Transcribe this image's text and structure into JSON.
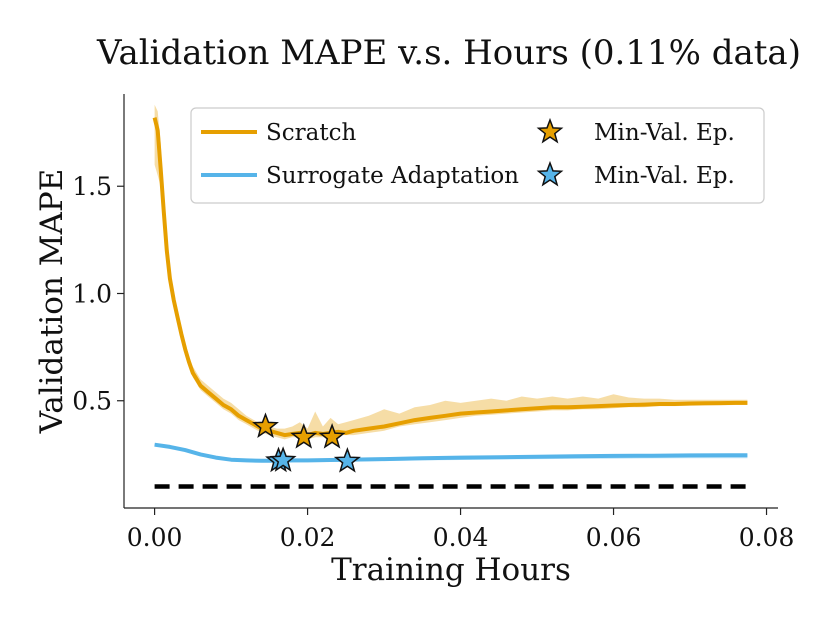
{
  "chart_data": {
    "type": "line",
    "title": "Validation MAPE v.s. Hours (0.11% data)",
    "xlabel": "Training Hours",
    "ylabel": "Validation MAPE",
    "xlim": [
      -0.004,
      0.0815
    ],
    "ylim": [
      0.0,
      1.93
    ],
    "xticks": [
      0.0,
      0.02,
      0.04,
      0.06,
      0.08
    ],
    "xtick_labels": [
      "0.00",
      "0.02",
      "0.04",
      "0.06",
      "0.08"
    ],
    "yticks": [
      0.5,
      1.0,
      1.5
    ],
    "ytick_labels": [
      "0.5",
      "1.0",
      "1.5"
    ],
    "colors": {
      "scratch": "#E69F00",
      "surrogate": "#56B4E9",
      "baseline": "#000000"
    },
    "series": [
      {
        "name": "Scratch",
        "color": "#E69F00",
        "x": [
          0.0,
          0.0004,
          0.0008,
          0.0012,
          0.0016,
          0.002,
          0.0025,
          0.003,
          0.0035,
          0.004,
          0.0045,
          0.005,
          0.0055,
          0.006,
          0.007,
          0.008,
          0.009,
          0.01,
          0.011,
          0.012,
          0.013,
          0.014,
          0.015,
          0.016,
          0.017,
          0.018,
          0.019,
          0.02,
          0.021,
          0.022,
          0.023,
          0.024,
          0.025,
          0.026,
          0.028,
          0.03,
          0.032,
          0.034,
          0.036,
          0.038,
          0.04,
          0.042,
          0.044,
          0.046,
          0.048,
          0.05,
          0.052,
          0.054,
          0.056,
          0.058,
          0.06,
          0.062,
          0.064,
          0.066,
          0.068,
          0.07,
          0.072,
          0.074,
          0.076,
          0.0775
        ],
        "y": [
          1.82,
          1.76,
          1.58,
          1.38,
          1.2,
          1.07,
          0.97,
          0.89,
          0.81,
          0.74,
          0.68,
          0.63,
          0.6,
          0.57,
          0.54,
          0.51,
          0.48,
          0.46,
          0.43,
          0.41,
          0.39,
          0.37,
          0.36,
          0.35,
          0.34,
          0.345,
          0.35,
          0.34,
          0.35,
          0.345,
          0.35,
          0.355,
          0.35,
          0.36,
          0.37,
          0.38,
          0.395,
          0.41,
          0.42,
          0.43,
          0.44,
          0.445,
          0.45,
          0.455,
          0.46,
          0.465,
          0.47,
          0.47,
          0.472,
          0.475,
          0.478,
          0.48,
          0.482,
          0.485,
          0.485,
          0.487,
          0.488,
          0.489,
          0.49,
          0.49
        ],
        "y_lower": [
          1.6,
          1.55,
          1.5,
          1.33,
          1.17,
          1.04,
          0.95,
          0.87,
          0.79,
          0.72,
          0.66,
          0.61,
          0.58,
          0.55,
          0.52,
          0.49,
          0.46,
          0.44,
          0.41,
          0.39,
          0.37,
          0.35,
          0.34,
          0.33,
          0.32,
          0.33,
          0.33,
          0.32,
          0.33,
          0.33,
          0.33,
          0.34,
          0.34,
          0.34,
          0.35,
          0.36,
          0.38,
          0.39,
          0.4,
          0.41,
          0.42,
          0.43,
          0.435,
          0.44,
          0.445,
          0.45,
          0.455,
          0.455,
          0.46,
          0.46,
          0.465,
          0.47,
          0.47,
          0.475,
          0.475,
          0.477,
          0.478,
          0.479,
          0.48,
          0.48
        ],
        "y_upper": [
          1.88,
          1.85,
          1.7,
          1.45,
          1.26,
          1.11,
          1.0,
          0.92,
          0.84,
          0.77,
          0.71,
          0.66,
          0.63,
          0.6,
          0.57,
          0.54,
          0.51,
          0.49,
          0.46,
          0.43,
          0.41,
          0.39,
          0.38,
          0.37,
          0.37,
          0.38,
          0.4,
          0.37,
          0.45,
          0.38,
          0.42,
          0.39,
          0.4,
          0.41,
          0.43,
          0.46,
          0.44,
          0.47,
          0.48,
          0.5,
          0.49,
          0.5,
          0.51,
          0.5,
          0.52,
          0.51,
          0.52,
          0.51,
          0.52,
          0.51,
          0.53,
          0.515,
          0.51,
          0.51,
          0.505,
          0.505,
          0.505,
          0.505,
          0.505,
          0.505
        ]
      },
      {
        "name": "Surrogate Adaptation",
        "color": "#56B4E9",
        "x": [
          0.0,
          0.002,
          0.004,
          0.006,
          0.008,
          0.01,
          0.012,
          0.014,
          0.016,
          0.018,
          0.02,
          0.025,
          0.03,
          0.035,
          0.04,
          0.045,
          0.05,
          0.055,
          0.06,
          0.065,
          0.07,
          0.075,
          0.0775
        ],
        "y": [
          0.295,
          0.285,
          0.27,
          0.25,
          0.235,
          0.225,
          0.222,
          0.22,
          0.22,
          0.222,
          0.222,
          0.225,
          0.228,
          0.232,
          0.235,
          0.237,
          0.239,
          0.241,
          0.243,
          0.244,
          0.245,
          0.246,
          0.246
        ],
        "y_lower": [
          0.29,
          0.28,
          0.265,
          0.245,
          0.23,
          0.22,
          0.215,
          0.212,
          0.212,
          0.212,
          0.213,
          0.216,
          0.219,
          0.222,
          0.224,
          0.226,
          0.228,
          0.229,
          0.23,
          0.231,
          0.232,
          0.232,
          0.232
        ],
        "y_upper": [
          0.3,
          0.29,
          0.275,
          0.255,
          0.24,
          0.23,
          0.228,
          0.226,
          0.226,
          0.228,
          0.228,
          0.231,
          0.234,
          0.238,
          0.241,
          0.243,
          0.245,
          0.247,
          0.249,
          0.25,
          0.251,
          0.252,
          0.252
        ]
      },
      {
        "name": "baseline",
        "color": "#000000",
        "style": "dashed",
        "x": [
          0.0,
          0.0775
        ],
        "y": [
          0.1,
          0.1
        ]
      }
    ],
    "markers": [
      {
        "series": "Scratch",
        "label": "Min-Val. Ep.",
        "points": [
          [
            0.0145,
            0.38
          ],
          [
            0.0195,
            0.33
          ],
          [
            0.0232,
            0.33
          ]
        ]
      },
      {
        "series": "Surrogate Adaptation",
        "label": "Min-Val. Ep.",
        "points": [
          [
            0.0162,
            0.22
          ],
          [
            0.0168,
            0.222
          ],
          [
            0.0252,
            0.218
          ]
        ]
      }
    ],
    "legend": {
      "placement": "top-right",
      "entries": [
        {
          "label": "Scratch",
          "kind": "line",
          "color": "#E69F00"
        },
        {
          "label": "Min-Val. Ep.",
          "kind": "star",
          "color": "#E69F00"
        },
        {
          "label": "Surrogate Adaptation",
          "kind": "line",
          "color": "#56B4E9"
        },
        {
          "label": "Min-Val. Ep.",
          "kind": "star",
          "color": "#56B4E9"
        }
      ]
    }
  }
}
